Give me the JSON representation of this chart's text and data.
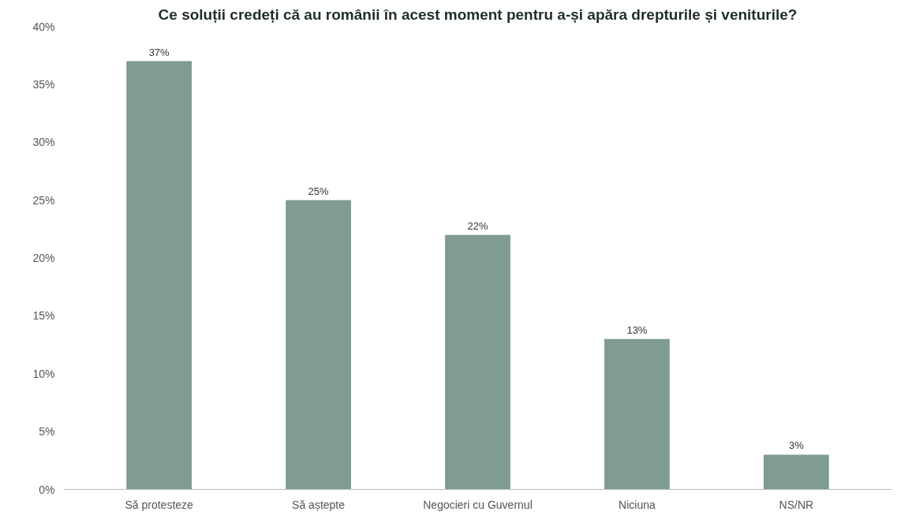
{
  "chart_data": {
    "type": "bar",
    "title": "Ce soluții credeți că au românii în acest moment pentru a-și apăra drepturile și veniturile?",
    "categories": [
      "Să protesteze",
      "Să aștepte",
      "Negocieri cu Guvernul",
      "Niciuna",
      "NS/NR"
    ],
    "values": [
      37,
      25,
      22,
      13,
      3
    ],
    "color": "#7f9b93",
    "ylim": [
      0,
      40
    ],
    "yticks": [
      {
        "value": 0,
        "label": "0%"
      },
      {
        "value": 5,
        "label": "5%"
      },
      {
        "value": 10,
        "label": "10%"
      },
      {
        "value": 15,
        "label": "15%"
      },
      {
        "value": 20,
        "label": "20%"
      },
      {
        "value": 25,
        "label": "25%"
      },
      {
        "value": 30,
        "label": "30%"
      },
      {
        "value": 35,
        "label": "35%"
      },
      {
        "value": 40,
        "label": "40%"
      }
    ],
    "value_labels": [
      "37%",
      "25%",
      "22%",
      "13%",
      "3%"
    ],
    "grid": false
  }
}
